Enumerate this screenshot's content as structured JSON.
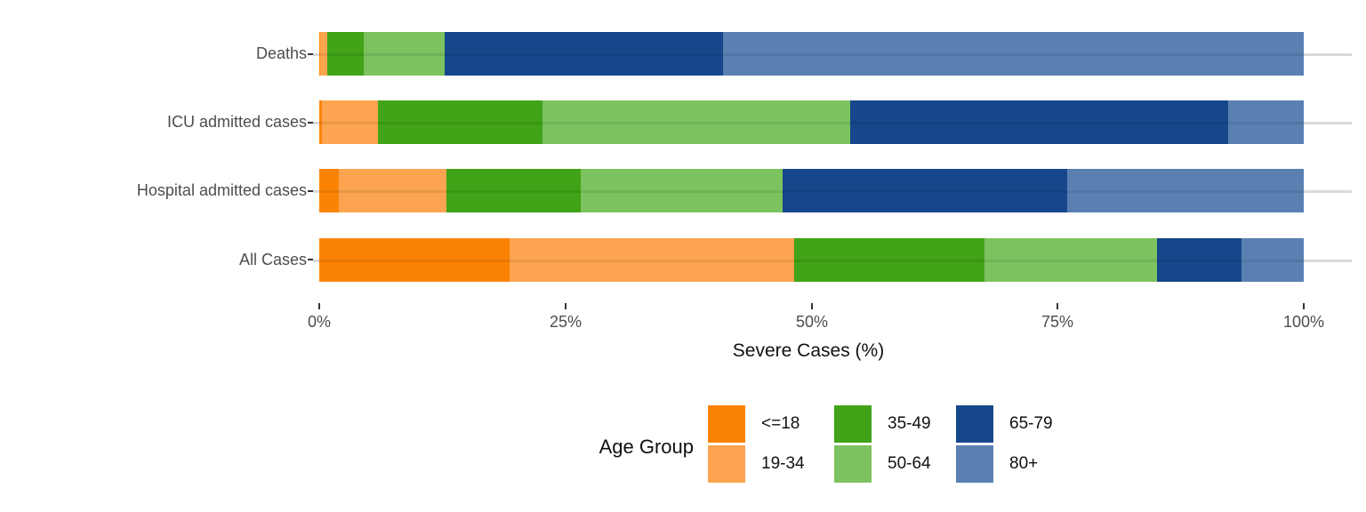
{
  "chart_data": {
    "type": "bar",
    "orientation": "horizontal",
    "stacked": true,
    "stack_unit": "percent",
    "xlabel": "Severe Cases (%)",
    "ylabel": "",
    "xlim": [
      0,
      100
    ],
    "grid": "horizontal-major",
    "categories": [
      "Deaths",
      "ICU admitted cases",
      "Hospital admitted cases",
      "All Cases"
    ],
    "x_ticks": [
      "0%",
      "25%",
      "50%",
      "75%",
      "100%"
    ],
    "x_tick_values": [
      0,
      25,
      50,
      75,
      100
    ],
    "legend": {
      "title": "Age Group",
      "position": "bottom",
      "layout": "3-columns-2-rows"
    },
    "series": [
      {
        "name": "<=18",
        "color": "#FB8304",
        "values": [
          0.1,
          0.3,
          2.0,
          19.3
        ]
      },
      {
        "name": "19-34",
        "color": "#FCA44F",
        "values": [
          0.7,
          5.7,
          10.9,
          28.9
        ]
      },
      {
        "name": "35-49",
        "color": "#41A317",
        "values": [
          3.7,
          16.7,
          13.7,
          19.4
        ]
      },
      {
        "name": "50-64",
        "color": "#7CC25F",
        "values": [
          8.2,
          31.2,
          20.5,
          17.5
        ]
      },
      {
        "name": "65-79",
        "color": "#17478B",
        "values": [
          28.3,
          38.4,
          28.9,
          8.6
        ]
      },
      {
        "name": "80+",
        "color": "#5A80B2",
        "values": [
          59.0,
          7.7,
          24.0,
          6.3
        ]
      }
    ],
    "colors": {
      "grid_line": "#d9d9d9",
      "axis_text": "#4d4d4d",
      "axis_title": "#111111"
    }
  }
}
